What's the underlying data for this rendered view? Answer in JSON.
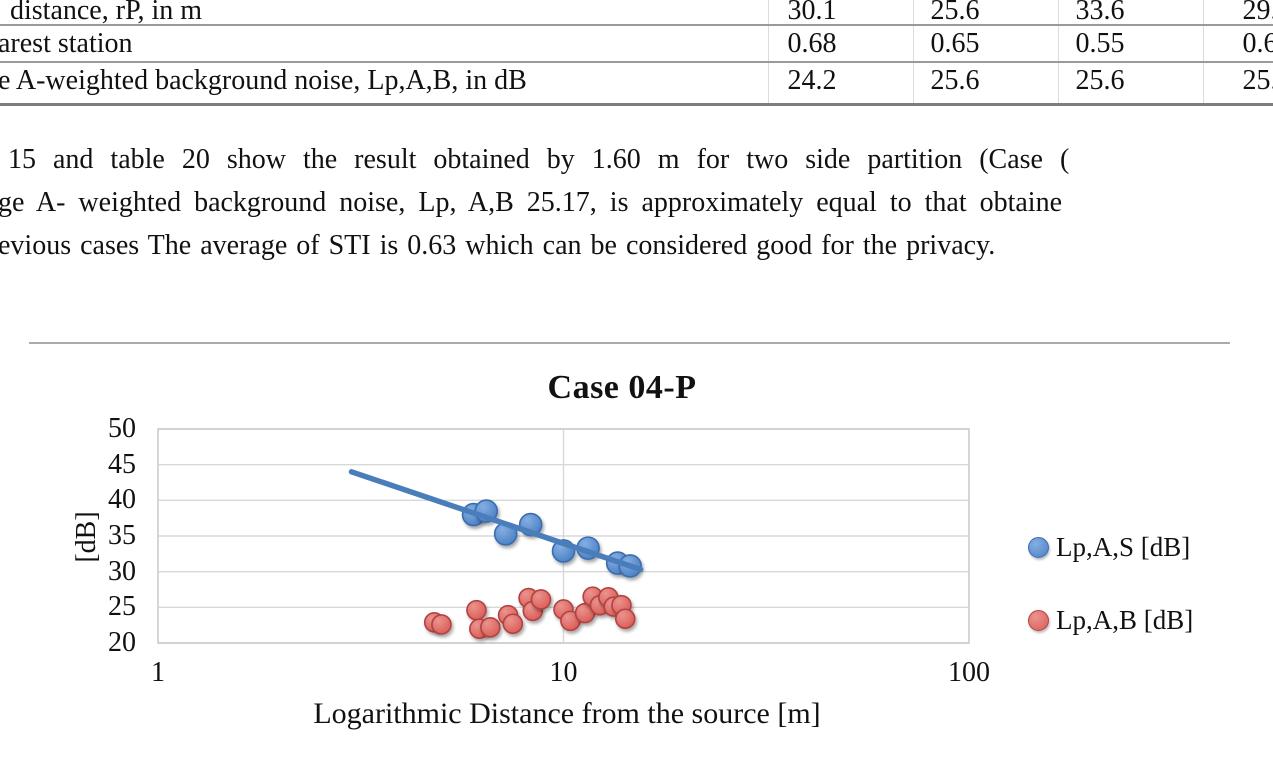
{
  "table": {
    "rows": [
      {
        "label": "distance, rP, in m",
        "values": [
          "30.1",
          "25.6",
          "33.6",
          "29."
        ]
      },
      {
        "label": "arest station",
        "values": [
          "0.68",
          "0.65",
          "0.55",
          "0.6"
        ]
      },
      {
        "label": "e A-weighted background noise, Lp,A,B, in dB",
        "values": [
          "24.2",
          "25.6",
          "25.6",
          "25."
        ]
      }
    ]
  },
  "paragraph": {
    "lines": [
      "15 and table 20 show the result obtained by 1.60 m for two side partition (Case (",
      "ge A- weighted background noise, Lp, A,B 25.17, is approximately equal to that obtaine",
      "evious cases The average of STI is 0.63 which can be considered good for the privacy."
    ]
  },
  "chart_data": {
    "type": "scatter",
    "title": "Case 04-P",
    "xlabel": "Logarithmic Distance from the source [m]",
    "ylabel": "[dB]",
    "x_scale": "log",
    "xlim": [
      1,
      100
    ],
    "ylim": [
      20,
      50
    ],
    "x_ticks": [
      1,
      10,
      100
    ],
    "y_ticks": [
      20,
      25,
      30,
      35,
      40,
      45,
      50
    ],
    "grid": true,
    "legend_position": "right",
    "grid_color": "#d8d8d8",
    "border_color": "#cccccc",
    "series": [
      {
        "name": "Lp,A,S [dB]",
        "color": "#4a81c4",
        "edge": "#3a6cb0",
        "highlight": "#85aee2",
        "marker_radius": 11,
        "points": [
          [
            6.0,
            38.0
          ],
          [
            6.45,
            38.5
          ],
          [
            7.2,
            35.3
          ],
          [
            8.3,
            36.6
          ],
          [
            10.0,
            32.9
          ],
          [
            11.5,
            33.3
          ],
          [
            13.6,
            31.2
          ],
          [
            14.6,
            30.8
          ]
        ]
      },
      {
        "name": "Lp,A,B [dB]",
        "color": "#db5c57",
        "edge": "#b04340",
        "highlight": "#eb938e",
        "marker_radius": 9.5,
        "points": [
          [
            4.8,
            22.9
          ],
          [
            5.0,
            22.6
          ],
          [
            6.1,
            24.6
          ],
          [
            6.2,
            22.0
          ],
          [
            6.6,
            22.2
          ],
          [
            7.3,
            23.9
          ],
          [
            7.5,
            22.7
          ],
          [
            8.2,
            26.3
          ],
          [
            8.4,
            24.5
          ],
          [
            8.8,
            26.1
          ],
          [
            10.0,
            24.7
          ],
          [
            10.4,
            23.1
          ],
          [
            11.3,
            24.2
          ],
          [
            11.8,
            26.5
          ],
          [
            12.3,
            25.3
          ],
          [
            12.9,
            26.4
          ],
          [
            13.3,
            25.1
          ],
          [
            13.9,
            25.3
          ],
          [
            14.2,
            23.4
          ]
        ]
      }
    ],
    "trendline": {
      "series": "Lp,A,S [dB]",
      "color": "#4a7ebb",
      "x_from": 3.0,
      "y_from": 44.0,
      "x_to": 15.5,
      "y_to": 30.3
    }
  }
}
